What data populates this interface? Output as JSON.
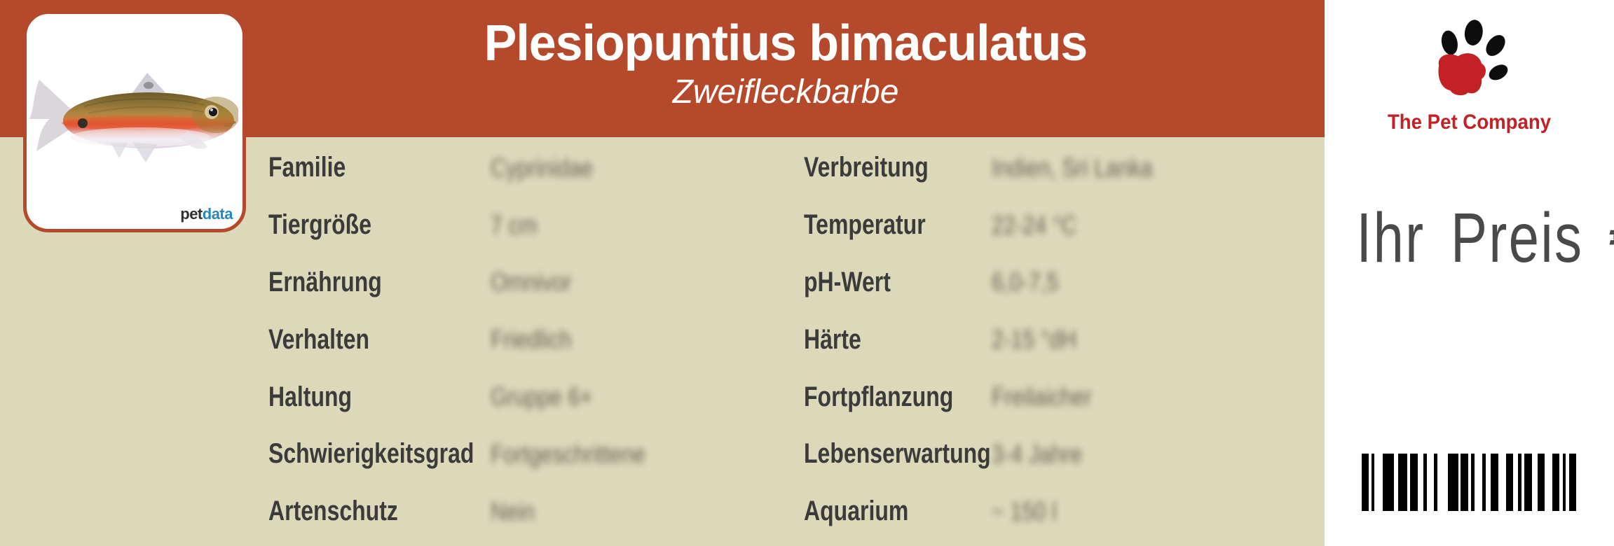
{
  "header": {
    "scientific_name": "Plesiopuntius bimaculatus",
    "common_name": "Zweifleckbarbe"
  },
  "photo_card": {
    "brand_pet": "pet",
    "brand_data": "data"
  },
  "details": {
    "left": [
      {
        "label": "Familie",
        "value": "Cyprinidae"
      },
      {
        "label": "Tiergröße",
        "value": "7 cm"
      },
      {
        "label": "Ernährung",
        "value": "Omnivor"
      },
      {
        "label": "Verhalten",
        "value": "Friedlich"
      },
      {
        "label": "Haltung",
        "value": "Gruppe 6+"
      },
      {
        "label": "Schwierigkeitsgrad",
        "value": "Fortgeschrittene"
      },
      {
        "label": "Artenschutz",
        "value": "Nein"
      }
    ],
    "right": [
      {
        "label": "Verbreitung",
        "value": "Indien, Sri Lanka"
      },
      {
        "label": "Temperatur",
        "value": "22-24 °C"
      },
      {
        "label": "pH-Wert",
        "value": "6,0-7,5"
      },
      {
        "label": "Härte",
        "value": "2-15 °dH"
      },
      {
        "label": "Fortpflanzung",
        "value": "Freilaicher"
      },
      {
        "label": "Lebenserwartung",
        "value": "3-4 Jahre"
      },
      {
        "label": "Aquarium",
        "value": "~ 150 l"
      }
    ]
  },
  "price_panel": {
    "company": "The Pet Company",
    "price_label": "Ihr Preis €"
  },
  "colors": {
    "band_red": "#b4492b",
    "beige": "#dcd8ba",
    "label_text": "#3b3b3b",
    "brand_red": "#c32126",
    "price_text": "#4a4a4a",
    "petdata_blue": "#2886b9"
  },
  "barcode": {
    "bars": [
      [
        10,
        4
      ],
      [
        4,
        12
      ],
      [
        16,
        6
      ],
      [
        13,
        4
      ],
      [
        11,
        8
      ],
      [
        5,
        10
      ],
      [
        5,
        15
      ],
      [
        15,
        3
      ],
      [
        11,
        4
      ],
      [
        5,
        11
      ],
      [
        5,
        7
      ],
      [
        11,
        11
      ],
      [
        10,
        7
      ],
      [
        5,
        4
      ],
      [
        11,
        8
      ],
      [
        10,
        11
      ],
      [
        10,
        5
      ],
      [
        4,
        5
      ],
      [
        10,
        0
      ]
    ]
  }
}
